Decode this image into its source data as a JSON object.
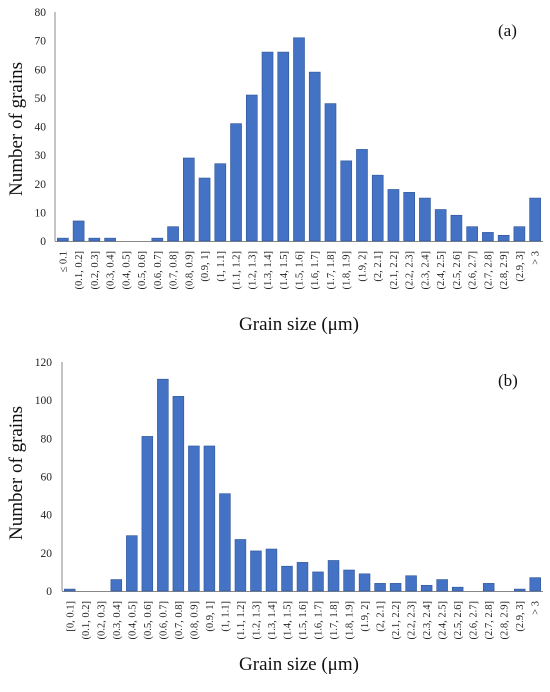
{
  "chart_data": [
    {
      "type": "bar",
      "panel_label": "(a)",
      "xlabel": "Grain size (μm)",
      "ylabel": "Number of grains",
      "ylim": [
        0,
        80
      ],
      "yticks": [
        0,
        10,
        20,
        30,
        40,
        50,
        60,
        70,
        80
      ],
      "bar_color": "#4472C4",
      "grid": false,
      "categories": [
        "≤ 0.1",
        "(0.1, 0.2]",
        "(0.2, 0.3]",
        "(0.3, 0.4]",
        "(0.4, 0.5]",
        "(0.5, 0.6]",
        "(0.6, 0.7]",
        "(0.7, 0.8]",
        "(0.8, 0.9]",
        "(0.9, 1]",
        "(1, 1.1]",
        "(1.1, 1.2]",
        "(1.2, 1.3]",
        "(1.3, 1.4]",
        "(1.4, 1.5]",
        "(1.5, 1.6]",
        "(1.6, 1.7]",
        "(1.7, 1.8]",
        "(1.8, 1.9]",
        "(1.9, 2]",
        "(2, 2.1]",
        "(2.1, 2.2]",
        "(2.2, 2.3]",
        "(2.3, 2.4]",
        "(2.4, 2.5]",
        "(2.5, 2.6]",
        "(2.6, 2.7]",
        "(2.7, 2.8]",
        "(2.8, 2.9]",
        "(2.9, 3]",
        "> 3"
      ],
      "values": [
        1,
        7,
        1,
        1,
        0,
        0,
        1,
        5,
        29,
        22,
        27,
        41,
        51,
        66,
        66,
        71,
        59,
        48,
        28,
        32,
        23,
        18,
        17,
        15,
        11,
        9,
        5,
        3,
        2,
        5,
        15
      ]
    },
    {
      "type": "bar",
      "panel_label": "(b)",
      "xlabel": "Grain size (μm)",
      "ylabel": "Number of grains",
      "ylim": [
        0,
        120
      ],
      "yticks": [
        0,
        20,
        40,
        60,
        80,
        100,
        120
      ],
      "bar_color": "#4472C4",
      "grid": false,
      "categories": [
        "[0, 0.1]",
        "(0.1, 0.2]",
        "(0.2, 0.3]",
        "(0.3, 0.4]",
        "(0.4, 0.5]",
        "(0.5, 0.6]",
        "(0.6, 0.7]",
        "(0.7, 0.8]",
        "(0.8, 0.9]",
        "(0.9, 1]",
        "(1, 1.1]",
        "(1.1, 1.2]",
        "(1.2, 1.3]",
        "(1.3, 1.4]",
        "(1.4, 1.5]",
        "(1.5, 1.6]",
        "(1.6, 1.7]",
        "(1.7, 1.8]",
        "(1.8, 1.9]",
        "(1.9, 2]",
        "(2, 2.1]",
        "(2.1, 2.2]",
        "(2.2, 2.3]",
        "(2.3, 2.4]",
        "(2.4, 2.5]",
        "(2.5, 2.6]",
        "(2.6, 2.7]",
        "(2.7, 2.8]",
        "(2.8, 2.9]",
        "(2.9, 3]",
        "> 3"
      ],
      "values": [
        1,
        0,
        0,
        6,
        29,
        81,
        111,
        102,
        76,
        76,
        51,
        27,
        21,
        22,
        13,
        15,
        10,
        16,
        11,
        9,
        4,
        4,
        8,
        3,
        6,
        2,
        0,
        4,
        0,
        1,
        7
      ]
    }
  ]
}
